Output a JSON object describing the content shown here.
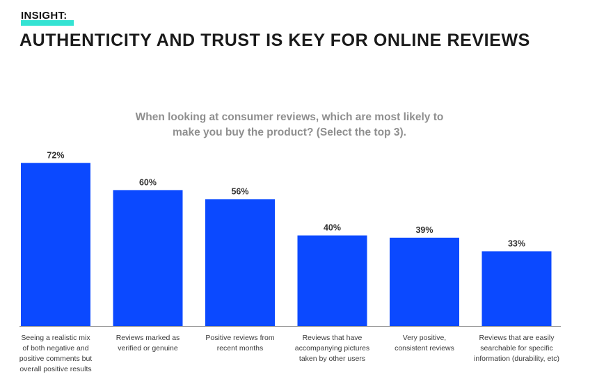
{
  "header": {
    "kicker": "INSIGHT:",
    "title": "AUTHENTICITY AND TRUST IS KEY FOR ONLINE REVIEWS"
  },
  "colors": {
    "bar": "#0b49ff",
    "highlight": "#34e3d3",
    "axis": "#9a9a9a"
  },
  "chart_data": {
    "type": "bar",
    "title": "When looking at consumer reviews, which are most likely to make you buy the product? (Select the top 3).",
    "title_lines": [
      "When looking at consumer reviews, which are most likely to",
      "make you buy the product? (Select the top 3)."
    ],
    "unit": "%",
    "ylim": [
      0,
      80
    ],
    "grid": false,
    "categories": [
      [
        "Seeing a realistic mix",
        "of both negative and",
        "positive comments but",
        "overall positive results"
      ],
      [
        "Reviews marked as",
        "verified or genuine"
      ],
      [
        "Positive reviews from",
        "recent months"
      ],
      [
        "Reviews that have",
        "accompanying pictures",
        "taken by other users"
      ],
      [
        "Very positive,",
        "consistent reviews"
      ],
      [
        "Reviews that are easily",
        "searchable for specific",
        "information (durability, etc)"
      ]
    ],
    "values": [
      72,
      60,
      56,
      40,
      39,
      33
    ],
    "data_labels": [
      "72%",
      "60%",
      "56%",
      "40%",
      "39%",
      "33%"
    ]
  }
}
